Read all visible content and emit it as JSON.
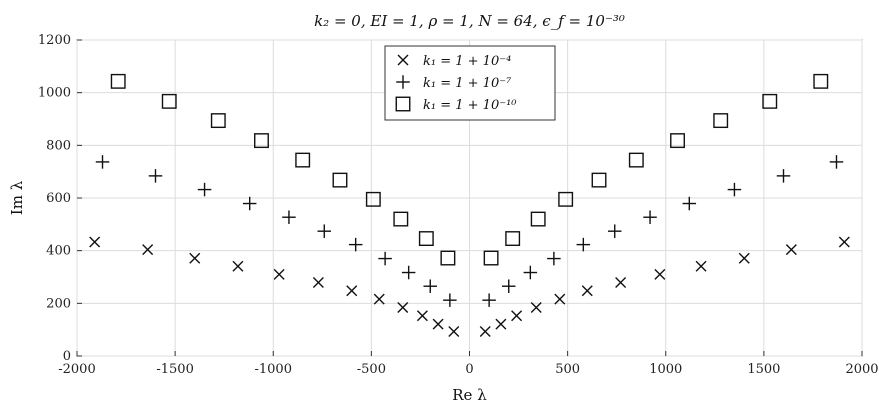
{
  "chart_data": {
    "type": "scatter",
    "title": "k₂ = 0, EI = 1, ρ = 1, N = 64, ϵ_f = 10⁻³⁰",
    "xlabel": "Re λ",
    "ylabel": "Im λ",
    "xlim": [
      -2000,
      2000
    ],
    "ylim": [
      0,
      1200
    ],
    "xticks": [
      -2000,
      -1500,
      -1000,
      -500,
      0,
      500,
      1000,
      1500,
      2000
    ],
    "yticks": [
      0,
      200,
      400,
      600,
      800,
      1000,
      1200
    ],
    "grid": true,
    "legend_position": "top-center",
    "series": [
      {
        "name": "k₁ = 1 + 10⁻⁴",
        "marker": "x",
        "points": [
          [
            -1910,
            433
          ],
          [
            -1640,
            404
          ],
          [
            -1400,
            371
          ],
          [
            -1180,
            341
          ],
          [
            -970,
            310
          ],
          [
            -770,
            279
          ],
          [
            -600,
            248
          ],
          [
            -460,
            216
          ],
          [
            -340,
            184
          ],
          [
            -240,
            153
          ],
          [
            -160,
            121
          ],
          [
            -80,
            93
          ],
          [
            80,
            93
          ],
          [
            160,
            121
          ],
          [
            240,
            153
          ],
          [
            340,
            184
          ],
          [
            460,
            216
          ],
          [
            600,
            248
          ],
          [
            770,
            279
          ],
          [
            970,
            310
          ],
          [
            1180,
            341
          ],
          [
            1400,
            371
          ],
          [
            1640,
            404
          ],
          [
            1910,
            433
          ]
        ]
      },
      {
        "name": "k₁ = 1 + 10⁻⁷",
        "marker": "+",
        "points": [
          [
            -1870,
            737
          ],
          [
            -1600,
            684
          ],
          [
            -1350,
            632
          ],
          [
            -1120,
            579
          ],
          [
            -920,
            527
          ],
          [
            -740,
            474
          ],
          [
            -580,
            423
          ],
          [
            -430,
            370
          ],
          [
            -310,
            317
          ],
          [
            -200,
            265
          ],
          [
            -100,
            212
          ],
          [
            100,
            212
          ],
          [
            200,
            265
          ],
          [
            310,
            317
          ],
          [
            430,
            370
          ],
          [
            580,
            423
          ],
          [
            740,
            474
          ],
          [
            920,
            527
          ],
          [
            1120,
            579
          ],
          [
            1350,
            632
          ],
          [
            1600,
            684
          ],
          [
            1870,
            737
          ]
        ]
      },
      {
        "name": "k₁ = 1 + 10⁻¹⁰",
        "marker": "square",
        "points": [
          [
            -1790,
            1043
          ],
          [
            -1530,
            967
          ],
          [
            -1280,
            894
          ],
          [
            -1060,
            818
          ],
          [
            -850,
            744
          ],
          [
            -660,
            668
          ],
          [
            -490,
            595
          ],
          [
            -350,
            520
          ],
          [
            -220,
            446
          ],
          [
            -110,
            372
          ],
          [
            110,
            372
          ],
          [
            220,
            446
          ],
          [
            350,
            520
          ],
          [
            490,
            595
          ],
          [
            660,
            668
          ],
          [
            850,
            744
          ],
          [
            1060,
            818
          ],
          [
            1280,
            894
          ],
          [
            1530,
            967
          ],
          [
            1790,
            1043
          ]
        ]
      }
    ]
  }
}
